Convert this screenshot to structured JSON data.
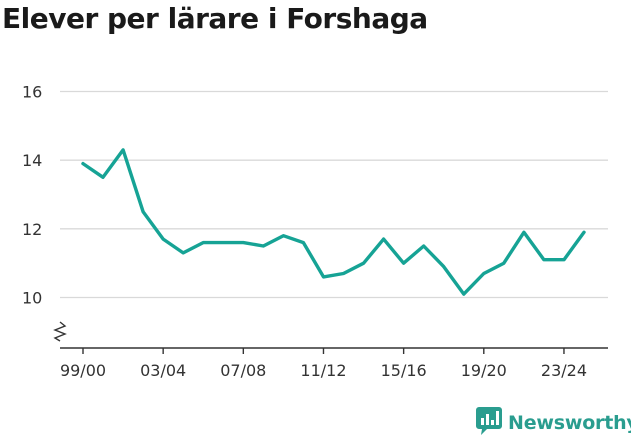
{
  "title": "Elever per lärare i Forshaga",
  "brand": {
    "name": "Newsworthy",
    "icon": "newsworthy-logo-icon"
  },
  "colors": {
    "line": "#16a395",
    "grid": "#d9d9d9",
    "axis": "#333333",
    "brand": "#2a9d8f"
  },
  "chart_data": {
    "type": "line",
    "title": "Elever per lärare i Forshaga",
    "xlabel": "",
    "ylabel": "",
    "ylim": [
      8.6,
      16.3
    ],
    "yticks": [
      10,
      12,
      14,
      16
    ],
    "y_axis_break": true,
    "grid": "horizontal",
    "x": [
      "99/00",
      "00/01",
      "01/02",
      "02/03",
      "03/04",
      "04/05",
      "05/06",
      "06/07",
      "07/08",
      "08/09",
      "09/10",
      "10/11",
      "11/12",
      "12/13",
      "13/14",
      "14/15",
      "15/16",
      "16/17",
      "17/18",
      "18/19",
      "19/20",
      "20/21",
      "21/22",
      "22/23",
      "23/24",
      "24/25"
    ],
    "xticks": [
      "99/00",
      "03/04",
      "07/08",
      "11/12",
      "15/16",
      "19/20",
      "23/24"
    ],
    "series": [
      {
        "values": [
          13.9,
          13.5,
          14.3,
          12.5,
          11.7,
          11.3,
          11.6,
          11.6,
          11.6,
          11.5,
          11.8,
          11.6,
          10.6,
          10.7,
          11.0,
          11.7,
          11.0,
          11.5,
          10.9,
          10.1,
          10.7,
          11.0,
          11.9,
          11.1,
          11.1,
          11.9
        ]
      }
    ]
  }
}
